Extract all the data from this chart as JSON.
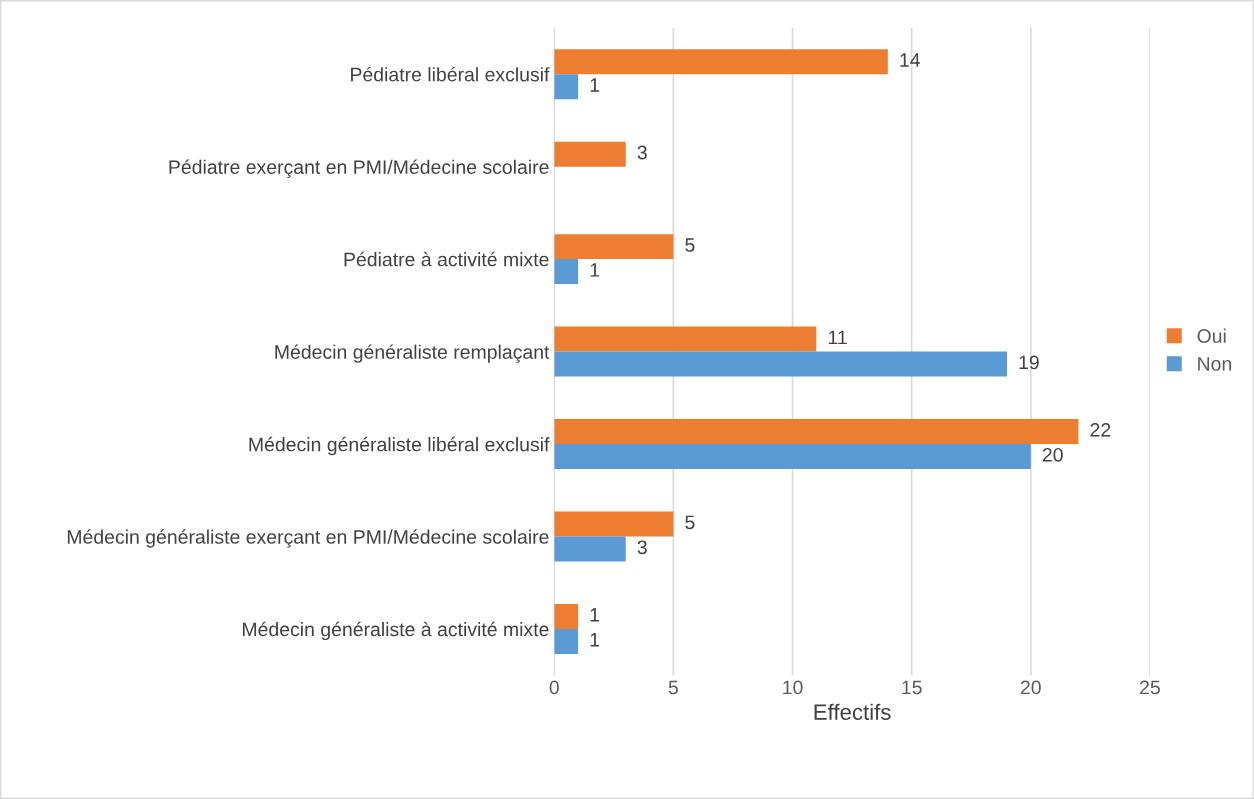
{
  "chart_data": {
    "type": "bar",
    "orientation": "horizontal",
    "xlabel": "Effectifs",
    "categories": [
      "Pédiatre libéral exclusif",
      "Pédiatre exerçant en PMI/Médecine scolaire",
      "Pédiatre à activité mixte",
      "Médecin généraliste remplaçant",
      "Médecin généraliste libéral exclusif",
      "Médecin généraliste exerçant en PMI/Médecine scolaire",
      "Médecin généraliste à activité mixte"
    ],
    "series": [
      {
        "name": "Oui",
        "color": "#ed7d31",
        "values": [
          14,
          3,
          5,
          11,
          22,
          5,
          1
        ]
      },
      {
        "name": "Non",
        "color": "#5b9bd5",
        "values": [
          1,
          null,
          1,
          19,
          20,
          3,
          1
        ]
      }
    ],
    "xlim": [
      0,
      25
    ],
    "xticks": [
      0,
      5,
      10,
      15,
      20,
      25
    ],
    "grid": "x",
    "legend": "right",
    "data_labels": true
  }
}
